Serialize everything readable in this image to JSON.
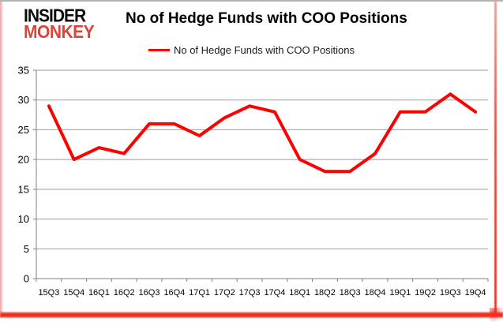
{
  "logo": {
    "line1": "INSIDER",
    "line2": "MONKEY",
    "line2_color": "#d9453a"
  },
  "title": "No of Hedge Funds with COO Positions",
  "legend": {
    "label": "No of Hedge Funds with COO Positions",
    "line_color": "#fe0000"
  },
  "chart_data": {
    "type": "line",
    "title": "No of Hedge Funds with COO Positions",
    "categories": [
      "15Q3",
      "15Q4",
      "16Q1",
      "16Q2",
      "16Q3",
      "16Q4",
      "17Q1",
      "17Q2",
      "17Q3",
      "17Q4",
      "18Q1",
      "18Q2",
      "18Q3",
      "18Q4",
      "19Q1",
      "19Q2",
      "19Q3",
      "19Q4"
    ],
    "series": [
      {
        "name": "No of Hedge Funds with COO Positions",
        "color": "#fe0000",
        "values": [
          29,
          20,
          22,
          21,
          26,
          26,
          24,
          27,
          29,
          28,
          20,
          18,
          18,
          21,
          28,
          28,
          31,
          28
        ]
      }
    ],
    "xlabel": "",
    "ylabel": "",
    "ylim": [
      0,
      35
    ],
    "yticks": [
      0,
      5,
      10,
      15,
      20,
      25,
      30,
      35
    ],
    "grid": true,
    "gridline_color": "#9b9b9b",
    "axis_color": "#7f7f7f",
    "legend_position": "top-center"
  }
}
